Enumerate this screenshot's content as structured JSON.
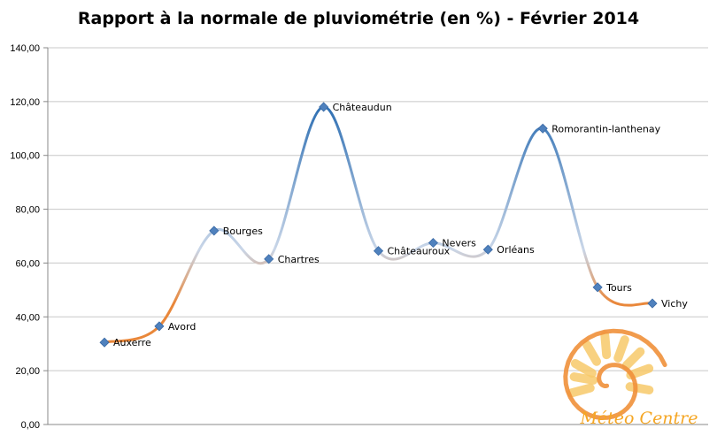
{
  "chart_data": {
    "type": "line",
    "title": "Rapport à la normale de pluviométrie (en %) - Février 2014",
    "categories": [
      "Auxerre",
      "Avord",
      "Bourges",
      "Chartres",
      "Châteaudun",
      "Châteauroux",
      "Nevers",
      "Orléans",
      "Romorantin-lanthenay",
      "Tours",
      "Vichy"
    ],
    "values": [
      30.5,
      36.5,
      72.0,
      61.5,
      118.0,
      64.5,
      67.5,
      65.0,
      110.0,
      51.0,
      45.0
    ],
    "ylim": [
      0,
      140
    ],
    "yticks": [
      "0,00",
      "20,00",
      "40,00",
      "60,00",
      "80,00",
      "100,00",
      "120,00",
      "140,00"
    ],
    "ytick_values": [
      0,
      20,
      40,
      60,
      80,
      100,
      120,
      140
    ],
    "grid": true,
    "smooth": true,
    "colors": {
      "low": "#e9873a",
      "mid": "#c9d6e8",
      "high": "#2e6fb3",
      "marker": "#4f81bd",
      "grid": "#c8c8c8"
    }
  },
  "logo": {
    "text": "Météo Centre",
    "icon": "sun-spiral-icon"
  }
}
